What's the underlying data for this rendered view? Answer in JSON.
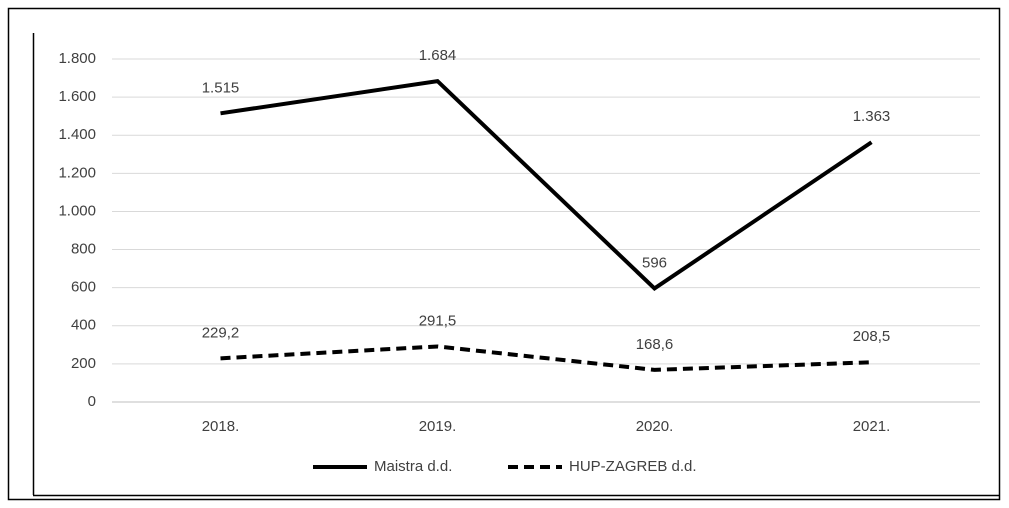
{
  "chart_data": {
    "type": "line",
    "categories": [
      "2018.",
      "2019.",
      "2020.",
      "2021."
    ],
    "series": [
      {
        "name": "Maistra d.d.",
        "color": "#000000",
        "line_style": "solid",
        "values": [
          1515,
          1684,
          596,
          1363
        ],
        "value_labels": [
          "1.515",
          "1.684",
          "596",
          "1.363"
        ]
      },
      {
        "name": "HUP-ZAGREB d.d.",
        "color": "#000000",
        "line_style": "dashed",
        "values": [
          229.2,
          291.5,
          168.6,
          208.5
        ],
        "value_labels": [
          "229,2",
          "291,5",
          "168,6",
          "208,5"
        ]
      }
    ],
    "ylim": [
      0,
      1800
    ],
    "yticks": [
      0,
      200,
      400,
      600,
      800,
      {
        "value": 1000,
        "label": "1.000"
      },
      {
        "value": 1200,
        "label": "1.200"
      },
      {
        "value": 1400,
        "label": "1.400"
      },
      {
        "value": 1600,
        "label": "1.600"
      },
      {
        "value": 1800,
        "label": "1.800"
      }
    ],
    "grid": true,
    "legend": "bottom"
  }
}
